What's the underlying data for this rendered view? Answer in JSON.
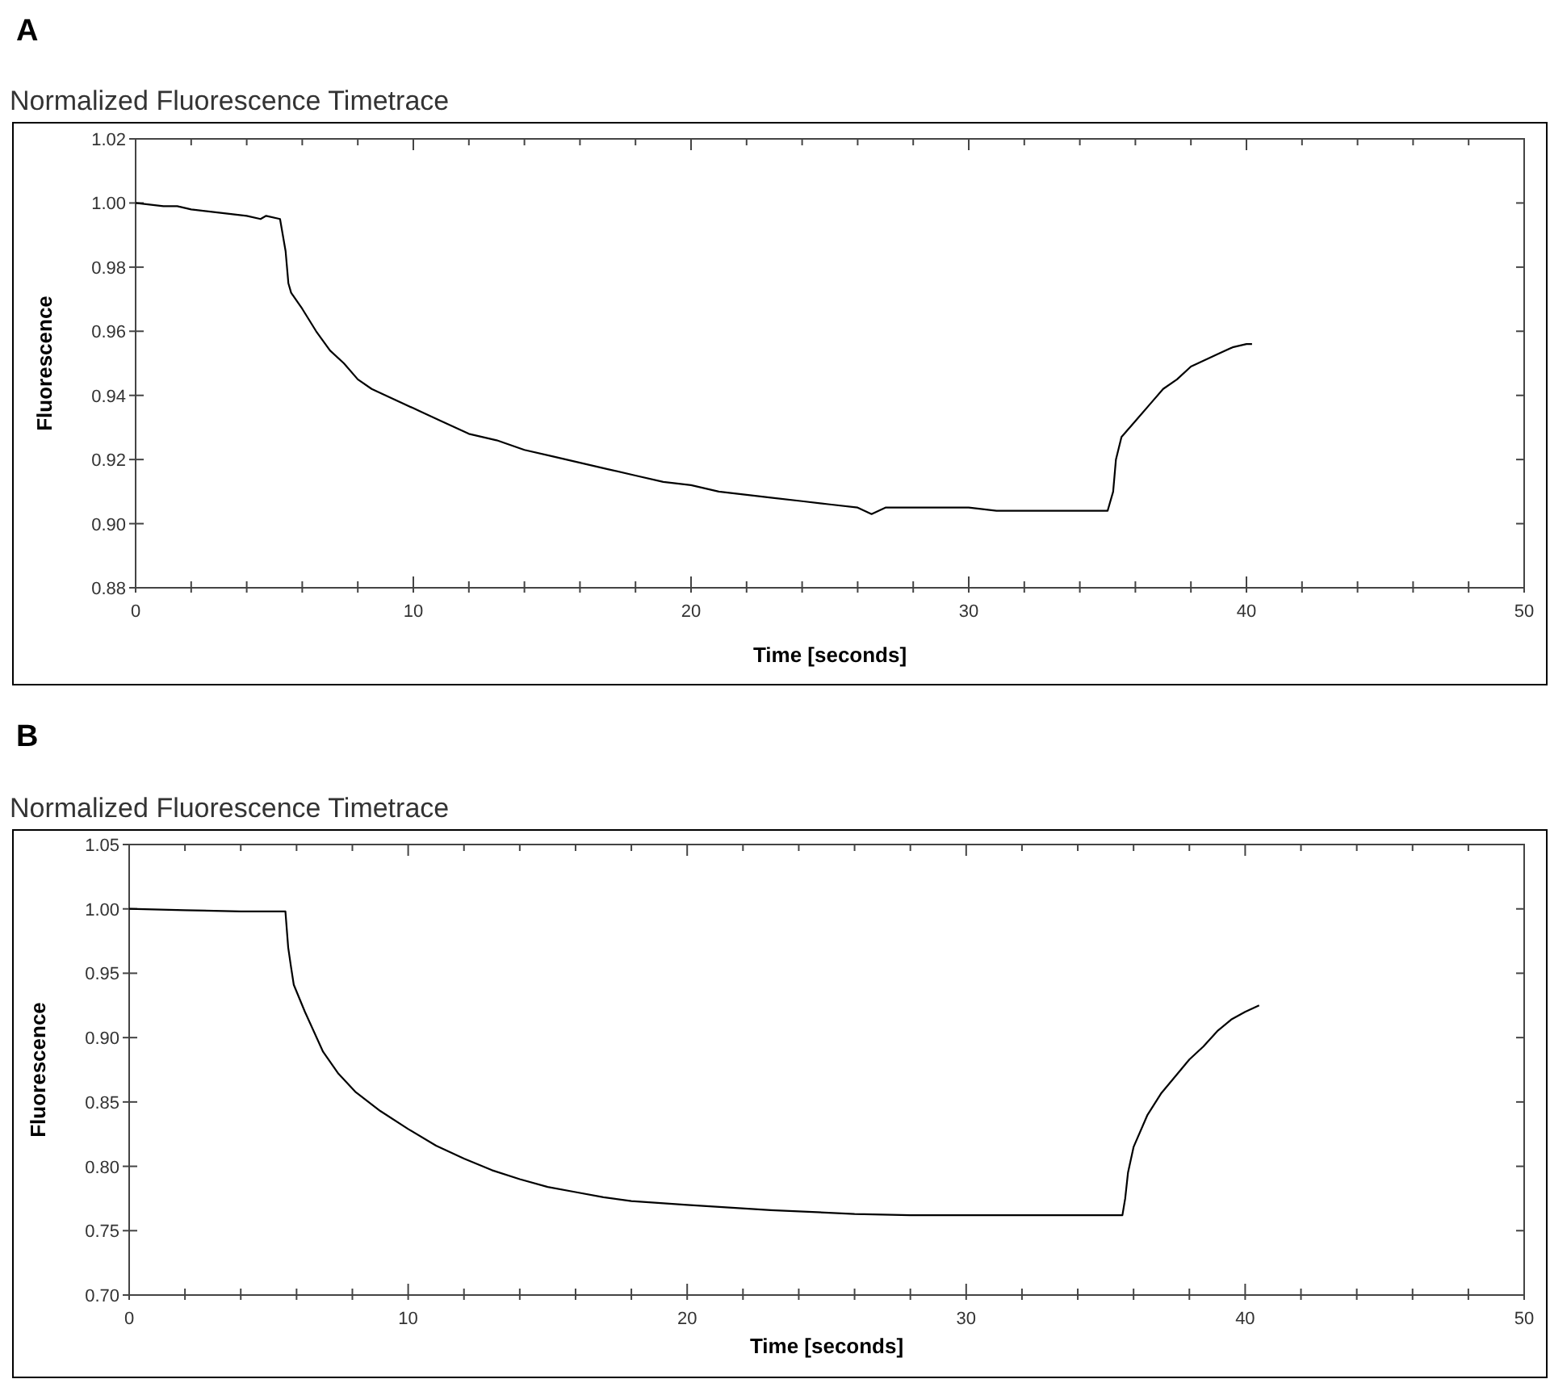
{
  "chart_data": [
    {
      "type": "line",
      "title": "Normalized Fluorescence Timetrace",
      "annotations": [
        "A"
      ],
      "xlabel": "Time [seconds]",
      "ylabel": "Fluorescence",
      "grid": false,
      "marker": "none",
      "line_style": "solid",
      "xlim": [
        0,
        50
      ],
      "xticks": [
        0,
        {
          "value": 2,
          "label": null
        },
        {
          "value": 4,
          "label": null
        },
        {
          "value": 6,
          "label": null
        },
        {
          "value": 8,
          "label": null
        },
        10,
        {
          "value": 12,
          "label": null
        },
        {
          "value": 14,
          "label": null
        },
        {
          "value": 16,
          "label": null
        },
        {
          "value": 18,
          "label": null
        },
        20,
        {
          "value": 22,
          "label": null
        },
        {
          "value": 24,
          "label": null
        },
        {
          "value": 26,
          "label": null
        },
        {
          "value": 28,
          "label": null
        },
        30,
        {
          "value": 32,
          "label": null
        },
        {
          "value": 34,
          "label": null
        },
        {
          "value": 36,
          "label": null
        },
        {
          "value": 38,
          "label": null
        },
        40,
        {
          "value": 42,
          "label": null
        },
        {
          "value": 44,
          "label": null
        },
        {
          "value": 46,
          "label": null
        },
        {
          "value": 48,
          "label": null
        },
        50
      ],
      "ylim": [
        0.88,
        1.02
      ],
      "yticks": [
        {
          "value": 0.88,
          "label": "0.88"
        },
        {
          "value": 0.9,
          "label": "0.90"
        },
        {
          "value": 0.92,
          "label": "0.92"
        },
        {
          "value": 0.94,
          "label": "0.94"
        },
        {
          "value": 0.96,
          "label": "0.96"
        },
        {
          "value": 0.98,
          "label": "0.98"
        },
        {
          "value": 1.0,
          "label": "1.00"
        },
        {
          "value": 1.02,
          "label": "1.02"
        }
      ],
      "series": [
        {
          "color": "#000000",
          "x": [
            0,
            0.5,
            1,
            1.5,
            2,
            3,
            4,
            4.5,
            4.7,
            5.2,
            5.4,
            5.5,
            5.6,
            6,
            6.5,
            7,
            7.5,
            8,
            8.5,
            9,
            10,
            11,
            12,
            13,
            14,
            15,
            16,
            17,
            18,
            19,
            20,
            21,
            22,
            23,
            24,
            25,
            26,
            26.5,
            27,
            28,
            29,
            30,
            31,
            32,
            33,
            34,
            35,
            35.2,
            35.3,
            35.5,
            36,
            36.5,
            37,
            37.5,
            38,
            38.5,
            39,
            39.5,
            40,
            40.2
          ],
          "values": [
            1.0,
            0.9995,
            0.999,
            0.999,
            0.998,
            0.997,
            0.996,
            0.995,
            0.996,
            0.995,
            0.985,
            0.975,
            0.972,
            0.967,
            0.96,
            0.954,
            0.95,
            0.945,
            0.942,
            0.94,
            0.936,
            0.932,
            0.928,
            0.926,
            0.923,
            0.921,
            0.919,
            0.917,
            0.915,
            0.913,
            0.912,
            0.91,
            0.909,
            0.908,
            0.907,
            0.906,
            0.905,
            0.903,
            0.905,
            0.905,
            0.905,
            0.905,
            0.904,
            0.904,
            0.904,
            0.904,
            0.904,
            0.91,
            0.92,
            0.927,
            0.932,
            0.937,
            0.942,
            0.945,
            0.949,
            0.951,
            0.953,
            0.955,
            0.956,
            0.956
          ]
        }
      ]
    },
    {
      "type": "line",
      "title": "Normalized Fluorescence Timetrace",
      "annotations": [
        "B"
      ],
      "xlabel": "Time [seconds]",
      "ylabel": "Fluorescence",
      "grid": false,
      "marker": "none",
      "line_style": "solid",
      "xlim": [
        0,
        50
      ],
      "xticks": [
        0,
        {
          "value": 2,
          "label": null
        },
        {
          "value": 4,
          "label": null
        },
        {
          "value": 6,
          "label": null
        },
        {
          "value": 8,
          "label": null
        },
        10,
        {
          "value": 12,
          "label": null
        },
        {
          "value": 14,
          "label": null
        },
        {
          "value": 16,
          "label": null
        },
        {
          "value": 18,
          "label": null
        },
        20,
        {
          "value": 22,
          "label": null
        },
        {
          "value": 24,
          "label": null
        },
        {
          "value": 26,
          "label": null
        },
        {
          "value": 28,
          "label": null
        },
        30,
        {
          "value": 32,
          "label": null
        },
        {
          "value": 34,
          "label": null
        },
        {
          "value": 36,
          "label": null
        },
        {
          "value": 38,
          "label": null
        },
        40,
        {
          "value": 42,
          "label": null
        },
        {
          "value": 44,
          "label": null
        },
        {
          "value": 46,
          "label": null
        },
        {
          "value": 48,
          "label": null
        },
        50
      ],
      "ylim": [
        0.7,
        1.05
      ],
      "yticks": [
        {
          "value": 0.7,
          "label": "0.70"
        },
        {
          "value": 0.75,
          "label": "0.75"
        },
        {
          "value": 0.8,
          "label": "0.80"
        },
        {
          "value": 0.85,
          "label": "0.85"
        },
        {
          "value": 0.9,
          "label": "0.90"
        },
        {
          "value": 0.95,
          "label": "0.95"
        },
        {
          "value": 1.0,
          "label": "1.00"
        },
        {
          "value": 1.05,
          "label": "1.05"
        }
      ],
      "series": [
        {
          "color": "#000000",
          "x": [
            0,
            2,
            4,
            5.6,
            5.7,
            5.8,
            5.9,
            6.3,
            6.95,
            7.5,
            8.1,
            9,
            10,
            11,
            12,
            13,
            14,
            15,
            16,
            17,
            18,
            20,
            23,
            26,
            28,
            30,
            35.6,
            35.7,
            35.8,
            36,
            36.5,
            37,
            37.5,
            38,
            38.5,
            39,
            39.5,
            40,
            40.5
          ],
          "values": [
            1.0,
            0.999,
            0.998,
            0.998,
            0.97,
            0.955,
            0.941,
            0.92,
            0.889,
            0.872,
            0.858,
            0.843,
            0.829,
            0.816,
            0.806,
            0.797,
            0.79,
            0.784,
            0.78,
            0.776,
            0.773,
            0.77,
            0.766,
            0.763,
            0.762,
            0.762,
            0.762,
            0.775,
            0.795,
            0.815,
            0.84,
            0.857,
            0.87,
            0.883,
            0.893,
            0.905,
            0.914,
            0.92,
            0.925
          ]
        }
      ]
    }
  ]
}
